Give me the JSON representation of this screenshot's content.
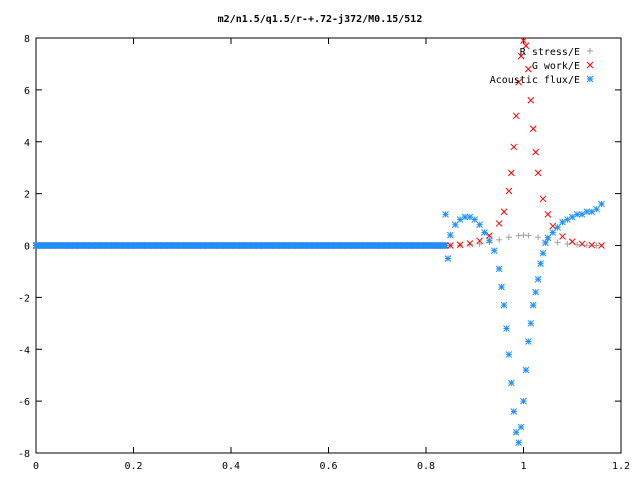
{
  "chart_data": {
    "type": "scatter",
    "title": "m2/n1.5/q1.5/r-+.72-j372/M0.15/512",
    "xlabel": "",
    "ylabel": "",
    "xlim": [
      0,
      1.2
    ],
    "ylim": [
      -8,
      8
    ],
    "xticks": [
      "0",
      "0.2",
      "0.4",
      "0.6",
      "0.8",
      "1",
      "1.2"
    ],
    "yticks": [
      "8",
      "6",
      "4",
      "2",
      "0",
      "-2",
      "-4",
      "-6",
      "-8"
    ],
    "grid": false,
    "legend_position": "top-right",
    "series": [
      {
        "name": "R stress/E",
        "marker": "+",
        "color": "#a0a0a0",
        "x": [
          0.85,
          0.87,
          0.89,
          0.91,
          0.93,
          0.95,
          0.97,
          0.99,
          1.0,
          1.01,
          1.03,
          1.05,
          1.07,
          1.09,
          1.11,
          1.13,
          1.15
        ],
        "y": [
          0.0,
          0.01,
          0.03,
          0.06,
          0.12,
          0.22,
          0.32,
          0.38,
          0.4,
          0.38,
          0.32,
          0.22,
          0.12,
          0.06,
          0.03,
          0.01,
          0.0
        ]
      },
      {
        "name": "G work/E",
        "marker": "x",
        "color": "#ff0000",
        "x": [
          0.85,
          0.87,
          0.89,
          0.91,
          0.93,
          0.95,
          0.96,
          0.97,
          0.975,
          0.98,
          0.985,
          0.99,
          0.995,
          1.0,
          1.005,
          1.01,
          1.015,
          1.02,
          1.025,
          1.03,
          1.04,
          1.05,
          1.06,
          1.08,
          1.1,
          1.12,
          1.14,
          1.16
        ],
        "y": [
          0.0,
          0.03,
          0.08,
          0.18,
          0.38,
          0.85,
          1.3,
          2.1,
          2.8,
          3.8,
          5.0,
          6.3,
          7.3,
          7.9,
          7.7,
          6.8,
          5.6,
          4.5,
          3.6,
          2.8,
          1.8,
          1.2,
          0.75,
          0.35,
          0.15,
          0.06,
          0.02,
          0.0
        ]
      },
      {
        "name": "Acoustic flux/E",
        "marker": "*",
        "color": "#1e90ff",
        "x": [
          0.84,
          0.845,
          0.85,
          0.86,
          0.87,
          0.88,
          0.89,
          0.9,
          0.91,
          0.92,
          0.93,
          0.94,
          0.95,
          0.955,
          0.96,
          0.965,
          0.97,
          0.975,
          0.98,
          0.985,
          0.99,
          0.995,
          1.0,
          1.005,
          1.01,
          1.015,
          1.02,
          1.025,
          1.03,
          1.035,
          1.04,
          1.045,
          1.05,
          1.06,
          1.07,
          1.08,
          1.09,
          1.1,
          1.11,
          1.12,
          1.13,
          1.14,
          1.15,
          1.16
        ],
        "y": [
          1.2,
          -0.5,
          0.4,
          0.8,
          1.0,
          1.1,
          1.1,
          1.0,
          0.8,
          0.5,
          0.2,
          -0.2,
          -0.9,
          -1.6,
          -2.3,
          -3.2,
          -4.2,
          -5.3,
          -6.4,
          -7.2,
          -7.6,
          -7.0,
          -6.0,
          -4.8,
          -3.7,
          -3.0,
          -2.3,
          -1.8,
          -1.3,
          -0.7,
          -0.3,
          0.1,
          0.3,
          0.5,
          0.7,
          0.9,
          1.0,
          1.1,
          1.2,
          1.2,
          1.3,
          1.3,
          1.4,
          1.6
        ]
      }
    ],
    "baseline": {
      "x_start": 0,
      "x_end": 0.84,
      "y": 0
    }
  }
}
